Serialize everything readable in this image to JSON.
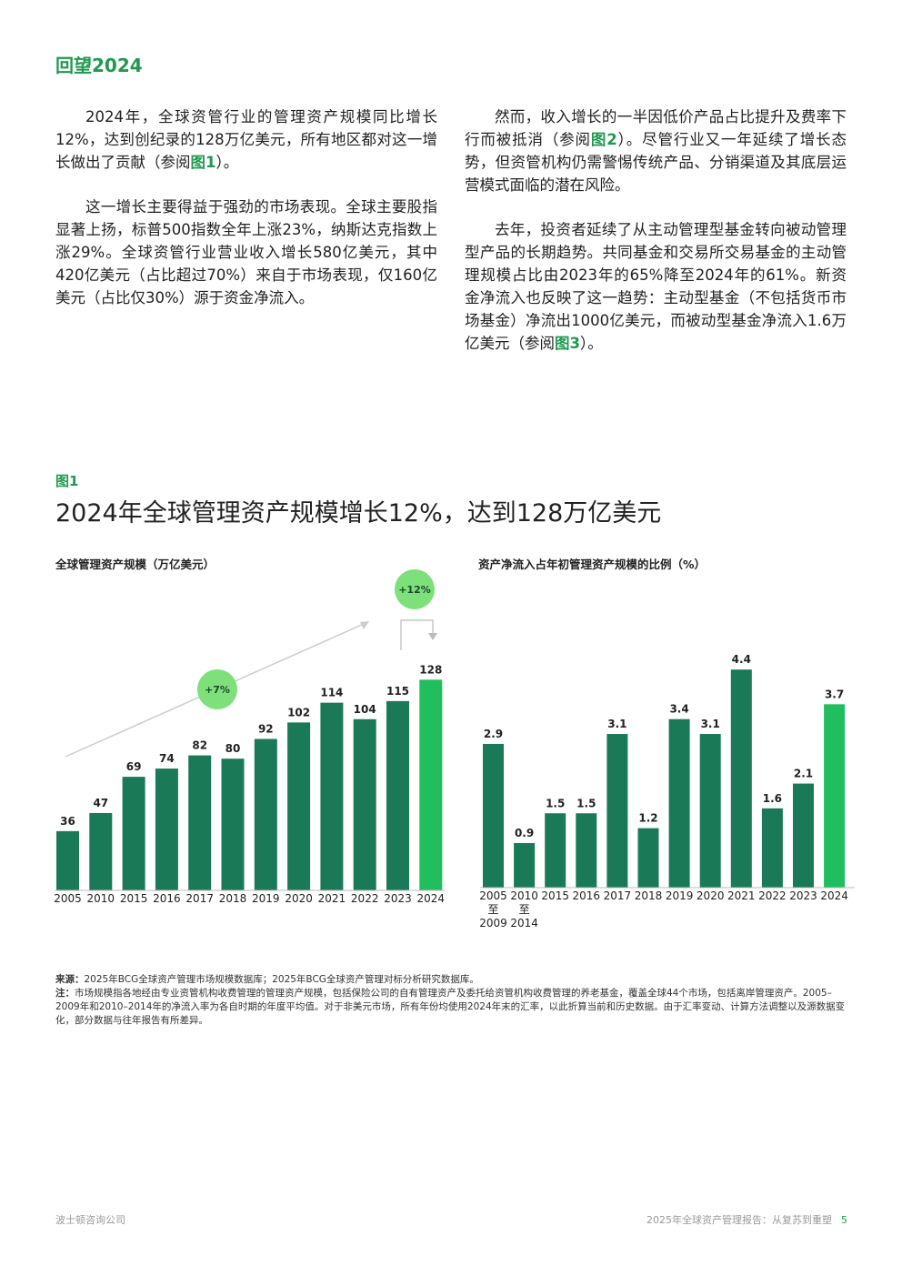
{
  "header": {
    "title": "回望2024"
  },
  "left_column": {
    "p1": [
      "2024年，全球资管行业的管理资产规模同比增长12%，达到创纪录的128万亿美元，所有地区都对这一增长做出了贡献（参阅",
      "图1",
      "）。"
    ],
    "p2": "这一增长主要得益于强劲的市场表现。全球主要股指显著上扬，标普500指数全年上涨23%，纳斯达克指数上涨29%。全球资管行业营业收入增长580亿美元，其中420亿美元（占比超过70%）来自于市场表现，仅160亿美元（占比仅30%）源于资金净流入。"
  },
  "right_column": {
    "p1": [
      "然而，收入增长的一半因低价产品占比提升及费率下行而被抵消（参阅",
      "图2",
      "）。尽管行业又一年延续了增长态势，但资管机构仍需警惕传统产品、分销渠道及其底层运营模式面临的潜在风险。"
    ],
    "p2": [
      "去年，投资者延续了从主动管理型基金转向被动管理型产品的长期趋势。共同基金和交易所交易基金的主动管理规模占比由2023年的65%降至2024年的61%。新资金净流入也反映了这一趋势：主动型基金（不包括货币市场基金）净流出1000亿美元，而被动型基金净流入1.6万亿美元（参阅",
      "图3",
      "）。"
    ]
  },
  "figure": {
    "label": "图1",
    "title": "2024年全球管理资产规模增长12%，达到128万亿美元"
  },
  "colors": {
    "dark_green": "#1a7a57",
    "bright_green": "#21be5e",
    "badge_green": "#7ee07a",
    "brand": "#1f9a4f"
  },
  "chart_data": [
    {
      "type": "bar",
      "title": "全球管理资产规模（万亿美元）",
      "categories": [
        "2005",
        "2010",
        "2015",
        "2016",
        "2017",
        "2018",
        "2019",
        "2020",
        "2021",
        "2022",
        "2023",
        "2024"
      ],
      "values": [
        36,
        47,
        69,
        74,
        82,
        80,
        92,
        102,
        114,
        104,
        115,
        128
      ],
      "value_labels": [
        "36",
        "47",
        "69",
        "74",
        "82",
        "80",
        "92",
        "102",
        "114",
        "104",
        "115",
        "128"
      ],
      "highlight": "2024",
      "annotations": [
        "+7%",
        "+12%"
      ],
      "ylim": [
        0,
        130
      ]
    },
    {
      "type": "bar",
      "title": "资产净流入占年初管理资产规模的比例（%）",
      "categories": [
        [
          "2005",
          "至",
          "2009"
        ],
        [
          "2010",
          "至",
          "2014"
        ],
        [
          "2015"
        ],
        [
          "2016"
        ],
        [
          "2017"
        ],
        [
          "2018"
        ],
        [
          "2019"
        ],
        [
          "2020"
        ],
        [
          "2021"
        ],
        [
          "2022"
        ],
        [
          "2023"
        ],
        [
          "2024"
        ]
      ],
      "values": [
        2.9,
        0.9,
        1.5,
        1.5,
        3.1,
        1.2,
        3.4,
        3.1,
        4.4,
        1.6,
        2.1,
        3.7
      ],
      "value_labels": [
        "2.9",
        "0.9",
        "1.5",
        "1.5",
        "3.1",
        "1.2",
        "3.4",
        "3.1",
        "4.4",
        "1.6",
        "2.1",
        "3.7"
      ],
      "highlight": "2024",
      "ylim": [
        0,
        4.4
      ]
    }
  ],
  "notes": {
    "source_label": "来源：",
    "source_text": "2025年BCG全球资产管理市场规模数据库；2025年BCG全球资产管理对标分析研究数据库。",
    "note_label": "注：",
    "note_text": "市场规模指各地经由专业资管机构收费管理的管理资产规模，包括保险公司的自有管理资产及委托给资管机构收费管理的养老基金，覆盖全球44个市场，包括离岸管理资产。2005–2009年和2010–2014年的净流入率为各自时期的年度平均值。对于非美元市场，所有年份均使用2024年末的汇率，以此折算当前和历史数据。由于汇率变动、计算方法调整以及源数据变化，部分数据与往年报告有所差异。"
  },
  "footer": {
    "left": "波士顿咨询公司",
    "right": "2025年全球资产管理报告：从复苏到重塑",
    "page": "5"
  }
}
